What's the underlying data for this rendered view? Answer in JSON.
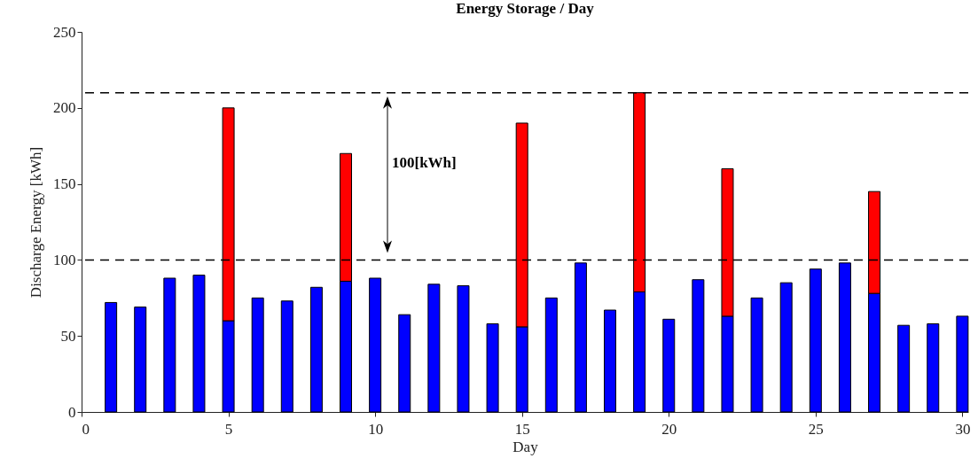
{
  "chart_data": {
    "type": "bar",
    "title": "Energy Storage / Day",
    "xlabel": "Day",
    "ylabel": "Discharge Energy [kWh]",
    "stacked": true,
    "x": [
      1,
      2,
      3,
      4,
      5,
      6,
      7,
      8,
      9,
      10,
      11,
      12,
      13,
      14,
      15,
      16,
      17,
      18,
      19,
      20,
      21,
      22,
      23,
      24,
      25,
      26,
      27,
      28,
      29,
      30
    ],
    "series": [
      {
        "color": "#0000ff",
        "values": [
          72,
          69,
          88,
          90,
          60,
          75,
          73,
          82,
          86,
          88,
          64,
          84,
          83,
          58,
          56,
          75,
          98,
          67,
          79,
          61,
          87,
          63,
          75,
          85,
          94,
          98,
          78,
          57,
          58,
          63
        ]
      },
      {
        "color": "#ff0000",
        "values": [
          null,
          null,
          null,
          null,
          140,
          null,
          null,
          null,
          84,
          null,
          null,
          null,
          null,
          null,
          134,
          null,
          null,
          null,
          131,
          null,
          null,
          97,
          null,
          null,
          null,
          null,
          67,
          null,
          null,
          null
        ]
      }
    ],
    "xlim": [
      0,
      30.2
    ],
    "xticks": [
      0,
      5,
      10,
      15,
      20,
      25,
      30
    ],
    "ylim": [
      0,
      250
    ],
    "yticks": [
      0,
      50,
      100,
      150,
      200,
      250
    ],
    "ref_lines": [
      {
        "axis": "y",
        "value": 100,
        "color": "#000000",
        "line_style": "dashed"
      },
      {
        "axis": "y",
        "value": 210,
        "color": "#000000",
        "line_style": "dashed"
      }
    ],
    "annotations": [
      "100[kWh]"
    ],
    "grid": false
  }
}
